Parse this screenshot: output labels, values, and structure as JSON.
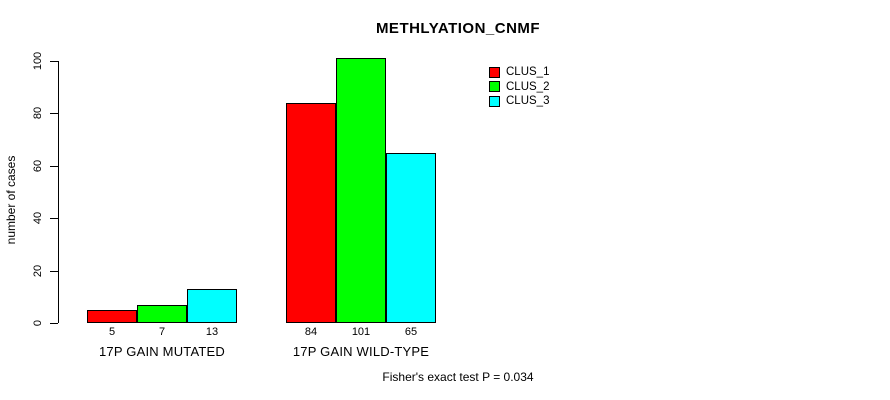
{
  "chart_data": {
    "type": "bar",
    "title": "METHLYATION_CNMF",
    "ylabel": "number of cases",
    "xlabel": "",
    "ylim": [
      0,
      100
    ],
    "yticks": [
      0,
      20,
      40,
      60,
      80,
      100
    ],
    "categories": [
      "17P GAIN MUTATED",
      "17P GAIN WILD-TYPE"
    ],
    "series": [
      {
        "name": "CLUS_1",
        "color": "#ff0000",
        "values": [
          5,
          84
        ]
      },
      {
        "name": "CLUS_2",
        "color": "#00ff00",
        "values": [
          7,
          101
        ]
      },
      {
        "name": "CLUS_3",
        "color": "#00ffff",
        "values": [
          13,
          65
        ]
      }
    ],
    "bar_value_labels": [
      [
        "5",
        "7",
        "13"
      ],
      [
        "84",
        "101",
        "65"
      ]
    ],
    "legend": {
      "position": "top-right",
      "entries": [
        "CLUS_1",
        "CLUS_2",
        "CLUS_3"
      ]
    },
    "grid": false,
    "annotation": "Fisher's exact test P = 0.034",
    "colors": {
      "background": "#ffffff",
      "axis": "#000000",
      "bar_border": "#000000",
      "text": "#000000"
    }
  }
}
